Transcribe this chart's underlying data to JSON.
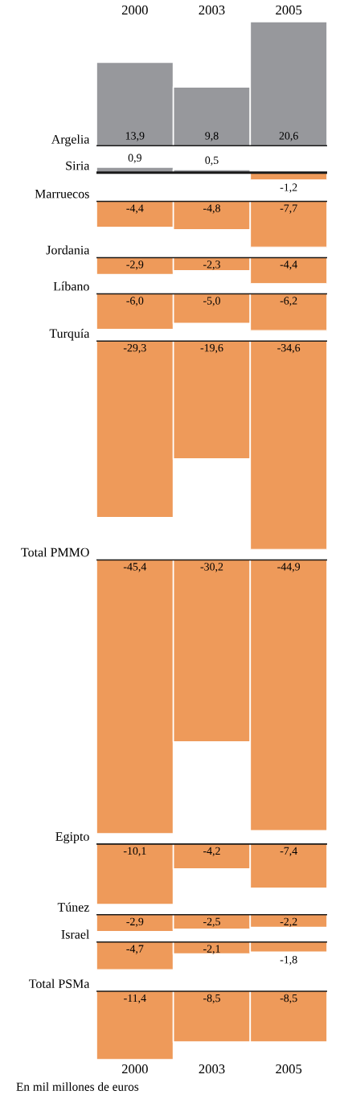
{
  "chart_data": [
    {
      "type": "bar",
      "title": "Argelia",
      "categories": [
        "2000",
        "2003",
        "2005"
      ],
      "values": [
        13.9,
        9.8,
        20.6
      ],
      "value_labels": [
        "13,9",
        "9,8",
        "20,6"
      ],
      "colors": [
        "#97989c",
        "#97989c",
        "#97989c"
      ],
      "tick_labels": "x"
    },
    {
      "type": "bar",
      "title": "Siria",
      "categories": [
        "2000",
        "2003",
        "2005"
      ],
      "values": [
        0.9,
        0.5,
        -1.2
      ],
      "value_labels": [
        "0,9",
        "0,5",
        "-1,2"
      ],
      "colors": [
        "#97989c",
        "#97989c",
        "#ee9a5a"
      ],
      "tick_labels": false
    },
    {
      "type": "bar",
      "title": "Marruecos",
      "categories": [
        "2000",
        "2003",
        "2005"
      ],
      "values": [
        -4.4,
        -4.8,
        -7.7
      ],
      "value_labels": [
        "-4,4",
        "-4,8",
        "-7,7"
      ],
      "colors": [
        "#ee9a5a",
        "#ee9a5a",
        "#ee9a5a"
      ],
      "tick_labels": false
    },
    {
      "type": "bar",
      "title": "Jordania",
      "categories": [
        "2000",
        "2003",
        "2005"
      ],
      "values": [
        -2.9,
        -2.3,
        -4.4
      ],
      "value_labels": [
        "-2,9",
        "-2,3",
        "-4,4"
      ],
      "colors": [
        "#ee9a5a",
        "#ee9a5a",
        "#ee9a5a"
      ],
      "tick_labels": false
    },
    {
      "type": "bar",
      "title": "Líbano",
      "categories": [
        "2000",
        "2003",
        "2005"
      ],
      "values": [
        -6.0,
        -5.0,
        -6.2
      ],
      "value_labels": [
        "-6,0",
        "-5,0",
        "-6,2"
      ],
      "colors": [
        "#ee9a5a",
        "#ee9a5a",
        "#ee9a5a"
      ],
      "tick_labels": false
    },
    {
      "type": "bar",
      "title": "Turquía",
      "categories": [
        "2000",
        "2003",
        "2005"
      ],
      "values": [
        -29.3,
        -19.6,
        -34.6
      ],
      "value_labels": [
        "-29,3",
        "-19,6",
        "-34,6"
      ],
      "colors": [
        "#ee9a5a",
        "#ee9a5a",
        "#ee9a5a"
      ],
      "tick_labels": false
    },
    {
      "type": "bar",
      "title": "Total PMMO",
      "categories": [
        "2000",
        "2003",
        "2005"
      ],
      "values": [
        -45.4,
        -30.2,
        -44.9
      ],
      "value_labels": [
        "-45,4",
        "-30,2",
        "-44,9"
      ],
      "colors": [
        "#ee9a5a",
        "#ee9a5a",
        "#ee9a5a"
      ],
      "tick_labels": false
    },
    {
      "type": "bar",
      "title": "Egipto",
      "categories": [
        "2000",
        "2003",
        "2005"
      ],
      "values": [
        -10.1,
        -4.2,
        -7.4
      ],
      "value_labels": [
        "-10,1",
        "-4,2",
        "-7,4"
      ],
      "colors": [
        "#ee9a5a",
        "#ee9a5a",
        "#ee9a5a"
      ],
      "tick_labels": false
    },
    {
      "type": "bar",
      "title": "Túnez",
      "categories": [
        "2000",
        "2003",
        "2005"
      ],
      "values": [
        -2.9,
        -2.5,
        -2.2
      ],
      "value_labels": [
        "-2,9",
        "-2,5",
        "-2,2"
      ],
      "colors": [
        "#ee9a5a",
        "#ee9a5a",
        "#ee9a5a"
      ],
      "tick_labels": false
    },
    {
      "type": "bar",
      "title": "Israel",
      "categories": [
        "2000",
        "2003",
        "2005"
      ],
      "values": [
        -4.7,
        -2.1,
        -1.8
      ],
      "value_labels": [
        "-4,7",
        "-2,1",
        "-1,8"
      ],
      "colors": [
        "#ee9a5a",
        "#ee9a5a",
        "#ee9a5a"
      ],
      "tick_labels": false
    },
    {
      "type": "bar",
      "title": "Total PSMa",
      "categories": [
        "2000",
        "2003",
        "2005"
      ],
      "values": [
        -11.4,
        -8.5,
        -8.5
      ],
      "value_labels": [
        "-11,4",
        "-8,5",
        "-8,5"
      ],
      "colors": [
        "#ee9a5a",
        "#ee9a5a",
        "#ee9a5a"
      ],
      "tick_labels": "x",
      "annotations": [
        "En mil millones de euros"
      ]
    }
  ]
}
